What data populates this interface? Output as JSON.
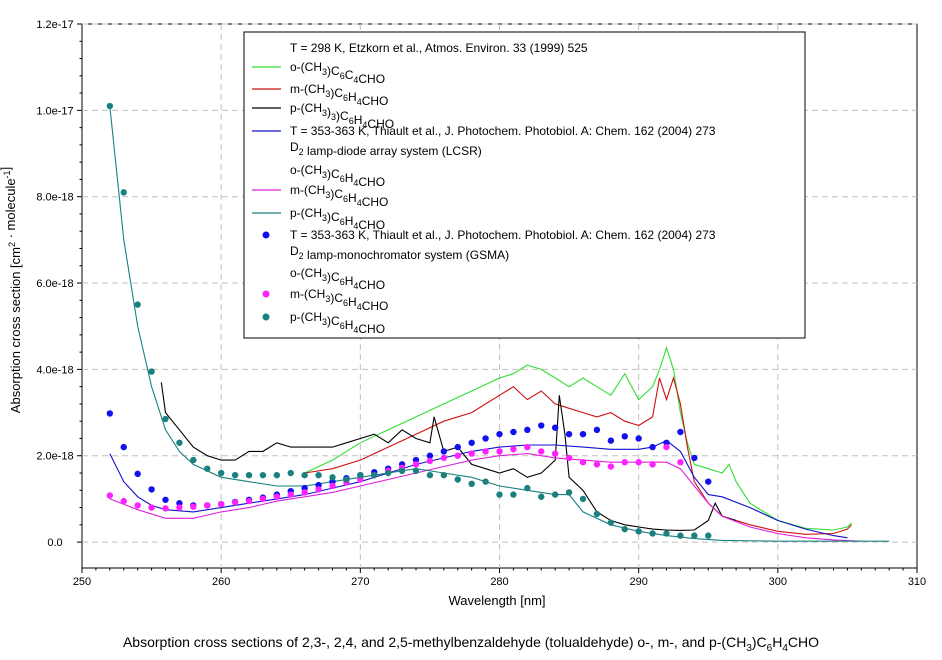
{
  "chart_data": {
    "type": "line",
    "xlabel": "Wavelength [nm]",
    "ylabel": "Absorption cross section [cm² · molecule⁻¹]",
    "xlim": [
      250,
      310
    ],
    "ylim": [
      -6e-19,
      1.2e-17
    ],
    "xticks": [
      250,
      260,
      270,
      280,
      290,
      300,
      310
    ],
    "yticks": [
      0,
      2e-18,
      4e-18,
      6e-18,
      8e-18,
      1e-17,
      1.2e-17
    ],
    "xtick_labels": [
      "250",
      "260",
      "270",
      "280",
      "290",
      "300",
      "310"
    ],
    "ytick_labels": [
      "0.0",
      "2.0e-18",
      "4.0e-18",
      "6.0e-18",
      "8.0e-18",
      "1.0e-17",
      "1.2e-17"
    ],
    "grid": true,
    "legend_position": "top",
    "legend": [
      {
        "label": "T = 298 K, Etzkorn et al., Atmos. Environ. 33 (1999) 525",
        "style": "header"
      },
      {
        "label": "o-(CH3)C6C4CHO",
        "style": "line",
        "color": "#33dd33"
      },
      {
        "label": "m-(CH3)C6H4CHO",
        "style": "line",
        "color": "#cc1111"
      },
      {
        "label": "p-(CH3)3)C6H4CHO",
        "style": "line",
        "color": "#000000"
      },
      {
        "label": "T = 353-363 K, Thiault et al., J. Photochem. Photobiol. A: Chem. 162 (2004) 273",
        "style": "line",
        "color": "#1111cc"
      },
      {
        "label": "D2 lamp-diode array system (LCSR)",
        "style": "header"
      },
      {
        "label": "o-(CH3)C6H4CHO",
        "style": "header"
      },
      {
        "label": "m-(CH3)C6H4CHO",
        "style": "line",
        "color": "#dd22dd"
      },
      {
        "label": "p-(CH3)C6H4CHO",
        "style": "line",
        "color": "#1a8080"
      },
      {
        "label": "T = 353-363 K, Thiault et al., J. Photochem. Photobiol. A: Chem. 162 (2004) 273",
        "style": "marker",
        "color": "#1111ee"
      },
      {
        "label": "D2 lamp-monochromator system (GSMA)",
        "style": "header"
      },
      {
        "label": "o-(CH3)C6H4CHO",
        "style": "header"
      },
      {
        "label": "m-(CH3)C6H4CHO",
        "style": "marker",
        "color": "#ff22ff"
      },
      {
        "label": "p-(CH3)C6H4CHO",
        "style": "marker",
        "color": "#1a8080"
      }
    ],
    "series": [
      {
        "name": "o-Etzkorn (298 K)",
        "kind": "line",
        "color": "#33dd33",
        "x": [
          266,
          268,
          270,
          272,
          274,
          276,
          278,
          280,
          281,
          282,
          283,
          284,
          285,
          286,
          287,
          288,
          289,
          290,
          291,
          291.5,
          292,
          292.5,
          293,
          293.5,
          294,
          295,
          296,
          296.5,
          297,
          298,
          300,
          302,
          304,
          305,
          305.3
        ],
        "y": [
          1.6e-18,
          1.9e-18,
          2.3e-18,
          2.6e-18,
          2.9e-18,
          3.2e-18,
          3.5e-18,
          3.8e-18,
          3.9e-18,
          4.1e-18,
          4e-18,
          3.8e-18,
          3.6e-18,
          3.8e-18,
          3.6e-18,
          3.4e-18,
          3.9e-18,
          3.3e-18,
          3.6e-18,
          4e-18,
          4.5e-18,
          4e-18,
          3e-18,
          2.3e-18,
          1.8e-18,
          1.7e-18,
          1.6e-18,
          1.8e-18,
          1.4e-18,
          9e-19,
          5e-19,
          3.2e-19,
          2.8e-19,
          3.5e-19,
          4.5e-19
        ]
      },
      {
        "name": "m-Etzkorn (298 K)",
        "kind": "line",
        "color": "#cc1111",
        "x": [
          266,
          268,
          270,
          272,
          274,
          276,
          278,
          279,
          280,
          281,
          282,
          283,
          284,
          285,
          286,
          287,
          288,
          289,
          290,
          291,
          291.5,
          292,
          292.5,
          293,
          293.5,
          294,
          295,
          296,
          298,
          300,
          302,
          304,
          305,
          305.3
        ],
        "y": [
          1.6e-18,
          1.7e-18,
          1.9e-18,
          2.2e-18,
          2.5e-18,
          2.8e-18,
          3e-18,
          3.2e-18,
          3.4e-18,
          3.6e-18,
          3.3e-18,
          3.5e-18,
          3.2e-18,
          3.1e-18,
          3e-18,
          2.9e-18,
          3e-18,
          2.8e-18,
          2.7e-18,
          2.9e-18,
          3.8e-18,
          3.3e-18,
          3.8e-18,
          3.2e-18,
          2.2e-18,
          1.4e-18,
          9e-19,
          6e-19,
          4e-19,
          2.5e-19,
          1.8e-19,
          2e-19,
          3e-19,
          4e-19
        ]
      },
      {
        "name": "p-Etzkorn (298 K)",
        "kind": "line",
        "color": "#000000",
        "x": [
          255.7,
          256,
          257,
          258,
          259,
          260,
          261,
          262,
          263,
          264,
          265,
          266,
          267,
          268,
          269,
          270,
          271,
          272,
          273,
          274,
          275,
          275.3,
          276,
          277,
          278,
          279,
          280,
          281,
          282,
          283,
          284,
          284.3,
          284.7,
          285,
          286,
          287,
          288,
          289,
          290,
          291,
          292,
          293,
          294,
          295,
          295.5,
          296,
          297
        ],
        "y": [
          3.7e-18,
          3e-18,
          2.6e-18,
          2.2e-18,
          2e-18,
          1.9e-18,
          1.9e-18,
          2.1e-18,
          2.1e-18,
          2.3e-18,
          2.2e-18,
          2.2e-18,
          2.2e-18,
          2.2e-18,
          2.3e-18,
          2.4e-18,
          2.5e-18,
          2.3e-18,
          2.6e-18,
          2.4e-18,
          2.3e-18,
          2.9e-18,
          2.1e-18,
          2.2e-18,
          1.8e-18,
          1.7e-18,
          1.6e-18,
          1.7e-18,
          1.5e-18,
          1.6e-18,
          1.9e-18,
          3.4e-18,
          2.5e-18,
          1.5e-18,
          1.2e-18,
          7e-19,
          5e-19,
          4e-19,
          3.5e-19,
          3e-19,
          2.8e-19,
          2.7e-19,
          2.8e-19,
          5e-19,
          9e-19,
          6e-19,
          5e-19
        ]
      },
      {
        "name": "o-Thiault LCSR",
        "kind": "line",
        "color": "#1111cc",
        "x": [
          252,
          253,
          254,
          255,
          256,
          258,
          260,
          262,
          264,
          266,
          268,
          270,
          272,
          274,
          276,
          278,
          280,
          282,
          284,
          286,
          288,
          290,
          291,
          292,
          293,
          294,
          295,
          296,
          298,
          300,
          302,
          304,
          305
        ],
        "y": [
          2.05e-18,
          1.4e-18,
          1.05e-18,
          8.5e-19,
          7.5e-19,
          7e-19,
          8e-19,
          9e-19,
          1e-18,
          1.1e-18,
          1.25e-18,
          1.4e-18,
          1.6e-18,
          1.8e-18,
          1.95e-18,
          2.1e-18,
          2.2e-18,
          2.25e-18,
          2.25e-18,
          2.2e-18,
          2.15e-18,
          2.15e-18,
          2.2e-18,
          2.35e-18,
          2.1e-18,
          1.5e-18,
          1.1e-18,
          1.05e-18,
          8e-19,
          5e-19,
          3e-19,
          1.5e-19,
          1e-19
        ]
      },
      {
        "name": "m-Thiault LCSR",
        "kind": "line",
        "color": "#dd22dd",
        "x": [
          252,
          254,
          256,
          258,
          260,
          262,
          264,
          266,
          268,
          270,
          272,
          274,
          276,
          278,
          280,
          282,
          284,
          286,
          288,
          290,
          292,
          293,
          294,
          295,
          296,
          298,
          300,
          302,
          304,
          306
        ],
        "y": [
          1e-18,
          7.5e-19,
          5.5e-19,
          5.5e-19,
          7e-19,
          8e-19,
          9.5e-19,
          1.05e-18,
          1.15e-18,
          1.3e-18,
          1.45e-18,
          1.6e-18,
          1.75e-18,
          1.9e-18,
          2e-18,
          2.05e-18,
          1.95e-18,
          1.9e-18,
          1.85e-18,
          1.85e-18,
          1.85e-18,
          1.7e-18,
          1.3e-18,
          9e-19,
          6e-19,
          3.5e-19,
          2e-19,
          1e-19,
          5e-20,
          2e-20
        ]
      },
      {
        "name": "p-Thiault LCSR",
        "kind": "line",
        "color": "#1a8080",
        "x": [
          252,
          253,
          254,
          255,
          256,
          257,
          258,
          260,
          262,
          264,
          266,
          268,
          270,
          272,
          274,
          276,
          278,
          280,
          282,
          284,
          285,
          286,
          288,
          290,
          292,
          294,
          296,
          298,
          300,
          302,
          304,
          306,
          308
        ],
        "y": [
          1.01e-17,
          7e-18,
          5e-18,
          3.6e-18,
          2.6e-18,
          2.1e-18,
          1.8e-18,
          1.5e-18,
          1.4e-18,
          1.3e-18,
          1.3e-18,
          1.4e-18,
          1.5e-18,
          1.6e-18,
          1.7e-18,
          1.6e-18,
          1.5e-18,
          1.3e-18,
          1.2e-18,
          1.1e-18,
          1.1e-18,
          7e-19,
          4e-19,
          2.5e-19,
          1.5e-19,
          8e-20,
          4e-20,
          3e-20,
          2e-20,
          2e-20,
          2e-20,
          2e-20,
          2e-20
        ]
      },
      {
        "name": "o-Thiault GSMA",
        "kind": "scatter",
        "color": "#1111ee",
        "x": [
          252,
          253,
          254,
          255,
          256,
          257,
          258,
          259,
          260,
          261,
          262,
          263,
          264,
          265,
          266,
          267,
          268,
          269,
          270,
          271,
          272,
          273,
          274,
          275,
          276,
          277,
          278,
          279,
          280,
          281,
          282,
          283,
          284,
          285,
          286,
          287,
          288,
          289,
          290,
          291,
          292,
          293,
          294,
          295
        ],
        "y": [
          2.98e-18,
          2.2e-18,
          1.58e-18,
          1.22e-18,
          9.8e-19,
          9e-19,
          8.5e-19,
          8.5e-19,
          8.8e-19,
          9.3e-19,
          9.8e-19,
          1.03e-18,
          1.1e-18,
          1.18e-18,
          1.25e-18,
          1.32e-18,
          1.4e-18,
          1.48e-18,
          1.55e-18,
          1.62e-18,
          1.7e-18,
          1.8e-18,
          1.9e-18,
          2e-18,
          2.1e-18,
          2.2e-18,
          2.3e-18,
          2.4e-18,
          2.5e-18,
          2.55e-18,
          2.6e-18,
          2.7e-18,
          2.65e-18,
          2.5e-18,
          2.5e-18,
          2.6e-18,
          2.35e-18,
          2.45e-18,
          2.4e-18,
          2.2e-18,
          2.3e-18,
          2.55e-18,
          1.95e-18,
          1.4e-18
        ]
      },
      {
        "name": "m-Thiault GSMA",
        "kind": "scatter",
        "color": "#ff22ff",
        "x": [
          252,
          253,
          254,
          255,
          256,
          257,
          258,
          259,
          260,
          261,
          262,
          263,
          264,
          265,
          266,
          267,
          268,
          269,
          270,
          271,
          272,
          273,
          274,
          275,
          276,
          277,
          278,
          279,
          280,
          281,
          282,
          283,
          284,
          285,
          286,
          287,
          288,
          289,
          290,
          291,
          292,
          293
        ],
        "y": [
          1.08e-18,
          9.5e-19,
          8.5e-19,
          8e-19,
          7.8e-19,
          8e-19,
          8.2e-19,
          8.5e-19,
          8.8e-19,
          9.2e-19,
          9.5e-19,
          1e-18,
          1.05e-18,
          1.1e-18,
          1.15e-18,
          1.22e-18,
          1.3e-18,
          1.38e-18,
          1.45e-18,
          1.55e-18,
          1.65e-18,
          1.72e-18,
          1.8e-18,
          1.88e-18,
          1.95e-18,
          2e-18,
          2.05e-18,
          2.1e-18,
          2.1e-18,
          2.15e-18,
          2.2e-18,
          2.1e-18,
          2.05e-18,
          1.95e-18,
          1.85e-18,
          1.8e-18,
          1.75e-18,
          1.85e-18,
          1.85e-18,
          1.8e-18,
          2.2e-18,
          1.85e-18
        ]
      },
      {
        "name": "p-Thiault GSMA",
        "kind": "scatter",
        "color": "#1a8080",
        "x": [
          252,
          253,
          254,
          255,
          256,
          257,
          258,
          259,
          260,
          261,
          262,
          263,
          264,
          265,
          266,
          267,
          268,
          269,
          270,
          271,
          272,
          273,
          274,
          275,
          276,
          277,
          278,
          279,
          280,
          281,
          282,
          283,
          284,
          285,
          286,
          287,
          288,
          289,
          290,
          291,
          292,
          293,
          294,
          295
        ],
        "y": [
          1.01e-17,
          8.1e-18,
          5.5e-18,
          3.95e-18,
          2.85e-18,
          2.3e-18,
          1.9e-18,
          1.7e-18,
          1.6e-18,
          1.55e-18,
          1.55e-18,
          1.55e-18,
          1.55e-18,
          1.6e-18,
          1.55e-18,
          1.55e-18,
          1.5e-18,
          1.45e-18,
          1.55e-18,
          1.55e-18,
          1.6e-18,
          1.65e-18,
          1.65e-18,
          1.55e-18,
          1.55e-18,
          1.45e-18,
          1.35e-18,
          1.4e-18,
          1.1e-18,
          1.1e-18,
          1.25e-18,
          1.05e-18,
          1.1e-18,
          1.15e-18,
          1e-18,
          6.5e-19,
          4.5e-19,
          3e-19,
          2.5e-19,
          2e-19,
          2e-19,
          1.5e-19,
          1.5e-19,
          1.5e-19
        ]
      }
    ]
  },
  "caption": "Absorption cross sections of 2,3-, 2,4, and 2,5-methylbenzaldehyde (tolualdehyde) o-, m-, and p-(CH3)C6H4CHO"
}
